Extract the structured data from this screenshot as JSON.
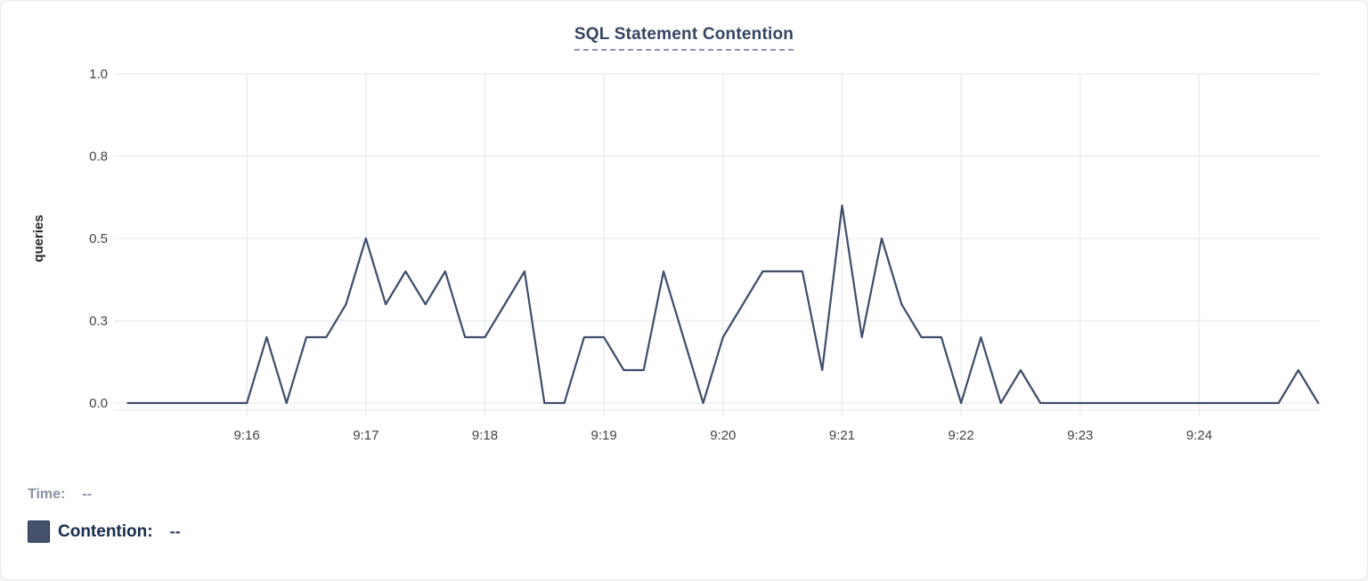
{
  "title": "SQL Statement Contention",
  "legend": {
    "time_label": "Time:",
    "time_value": "--",
    "contention_label": "Contention:",
    "contention_value": "--",
    "contention_swatch_color": "#44536B"
  },
  "chart_data": {
    "type": "line",
    "title": "SQL Statement Contention",
    "xlabel": "",
    "ylabel": "queries",
    "ylim": [
      0,
      1
    ],
    "grid": true,
    "legend_position": "bottom-left",
    "yticks": {
      "values": [
        0,
        0.25,
        0.5,
        0.75,
        1
      ],
      "labels": [
        "0.0",
        "0.3",
        "0.5",
        "0.8",
        "1.0"
      ]
    },
    "xticks": [
      "9:16",
      "9:17",
      "9:18",
      "9:19",
      "9:20",
      "9:21",
      "9:22",
      "9:23",
      "9:24"
    ],
    "x_range": [
      "9:15:00",
      "9:25:00"
    ],
    "interval_seconds": 10,
    "style": {
      "line_color": "#3E4D6B",
      "grid_color": "#ebedf0",
      "title_color": "#344563",
      "label_color": "#404348"
    },
    "series": [
      {
        "name": "Contention",
        "color": "#3E4D6B",
        "x": [
          "9:15:00",
          "9:15:10",
          "9:15:20",
          "9:15:30",
          "9:15:40",
          "9:15:50",
          "9:16:00",
          "9:16:10",
          "9:16:20",
          "9:16:30",
          "9:16:40",
          "9:16:50",
          "9:17:00",
          "9:17:10",
          "9:17:20",
          "9:17:30",
          "9:17:40",
          "9:17:50",
          "9:18:00",
          "9:18:10",
          "9:18:20",
          "9:18:30",
          "9:18:40",
          "9:18:50",
          "9:19:00",
          "9:19:10",
          "9:19:20",
          "9:19:30",
          "9:19:40",
          "9:19:50",
          "9:20:00",
          "9:20:10",
          "9:20:20",
          "9:20:30",
          "9:20:40",
          "9:20:50",
          "9:21:00",
          "9:21:10",
          "9:21:20",
          "9:21:30",
          "9:21:40",
          "9:21:50",
          "9:22:00",
          "9:22:10",
          "9:22:20",
          "9:22:30",
          "9:22:40",
          "9:22:50",
          "9:23:00",
          "9:23:10",
          "9:23:20",
          "9:23:30",
          "9:23:40",
          "9:23:50",
          "9:24:00",
          "9:24:10",
          "9:24:20",
          "9:24:30",
          "9:24:40",
          "9:24:50",
          "9:25:00"
        ],
        "values": [
          0,
          0,
          0,
          0,
          0,
          0,
          0,
          0.2,
          0,
          0.2,
          0.2,
          0.3,
          0.5,
          0.3,
          0.4,
          0.3,
          0.4,
          0.2,
          0.2,
          0.3,
          0.4,
          0,
          0,
          0.2,
          0.2,
          0.1,
          0.1,
          0.4,
          0.2,
          0,
          0.2,
          0.3,
          0.4,
          0.4,
          0.4,
          0.1,
          0.6,
          0.2,
          0.5,
          0.3,
          0.2,
          0.2,
          0,
          0.2,
          0,
          0.1,
          0,
          0,
          0,
          0,
          0,
          0,
          0,
          0,
          0,
          0,
          0,
          0,
          0,
          0.1,
          0
        ]
      }
    ]
  }
}
